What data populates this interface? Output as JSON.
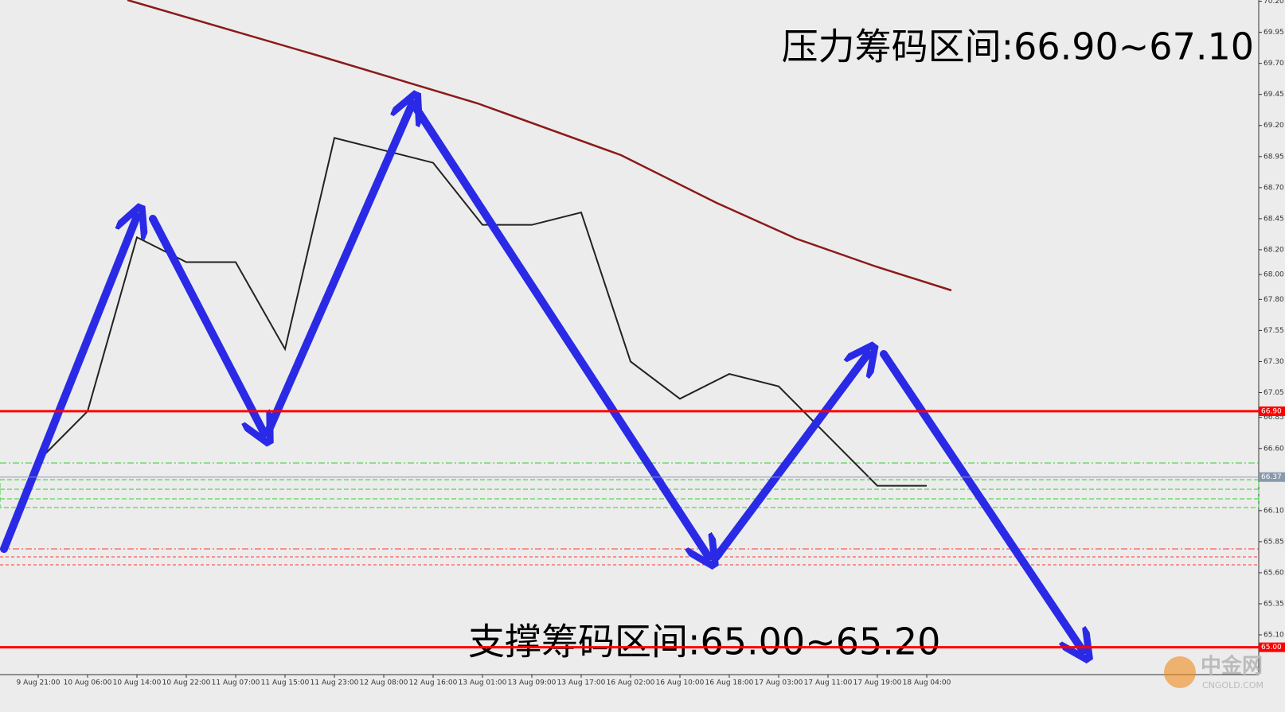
{
  "chart_data": {
    "type": "line",
    "annotations": [
      "压力筹码区间:66.90~67.10",
      "支撑筹码区间:65.00~65.20"
    ],
    "watermark": [
      "中金网",
      "CNGOLD.COM"
    ],
    "categories": [
      "9 Aug 21:00",
      "10 Aug 06:00",
      "10 Aug 14:00",
      "10 Aug 22:00",
      "11 Aug 07:00",
      "11 Aug 15:00",
      "11 Aug 23:00",
      "12 Aug 08:00",
      "12 Aug 16:00",
      "13 Aug 01:00",
      "13 Aug 09:00",
      "13 Aug 17:00",
      "16 Aug 02:00",
      "16 Aug 10:00",
      "16 Aug 18:00",
      "17 Aug 03:00",
      "17 Aug 11:00",
      "17 Aug 19:00",
      "18 Aug 04:00"
    ],
    "series": [
      {
        "color": "#222222",
        "values": [
          66.5,
          66.9,
          68.3,
          68.1,
          68.1,
          67.4,
          69.1,
          69.0,
          68.9,
          68.4,
          68.4,
          68.5,
          67.3,
          67.0,
          67.2,
          67.1,
          66.7,
          66.3,
          66.3
        ]
      }
    ],
    "ylim": [
      64.78,
      70.21
    ],
    "yticks": [
      {
        "value": 70.2,
        "label": "70.20"
      },
      {
        "value": 69.95,
        "label": "69.95"
      },
      {
        "value": 69.7,
        "label": "69.70"
      },
      {
        "value": 69.45,
        "label": "69.45"
      },
      {
        "value": 69.2,
        "label": "69.20"
      },
      {
        "value": 68.95,
        "label": "68.95"
      },
      {
        "value": 68.7,
        "label": "68.70"
      },
      {
        "value": 68.45,
        "label": "68.45"
      },
      {
        "value": 68.2,
        "label": "68.20"
      },
      {
        "value": 68.0,
        "label": "68.00"
      },
      {
        "value": 67.8,
        "label": "67.80"
      },
      {
        "value": 67.55,
        "label": "67.55"
      },
      {
        "value": 67.3,
        "label": "67.30"
      },
      {
        "value": 67.05,
        "label": "67.05"
      },
      {
        "value": 66.85,
        "label": "66.85"
      },
      {
        "value": 66.6,
        "label": "66.60"
      },
      {
        "value": 66.1,
        "label": "66.10"
      },
      {
        "value": 65.85,
        "label": "65.85"
      },
      {
        "value": 65.6,
        "label": "65.60"
      },
      {
        "value": 65.35,
        "label": "65.35"
      },
      {
        "value": 65.1,
        "label": "65.10"
      }
    ],
    "levels": [
      {
        "value": 66.9,
        "label": "66.90",
        "color": "#ff0000"
      },
      {
        "value": 65.0,
        "label": "65.00",
        "color": "#ff0000"
      },
      {
        "value": 66.37,
        "label": "66.37",
        "color": "#8899aa"
      }
    ]
  }
}
